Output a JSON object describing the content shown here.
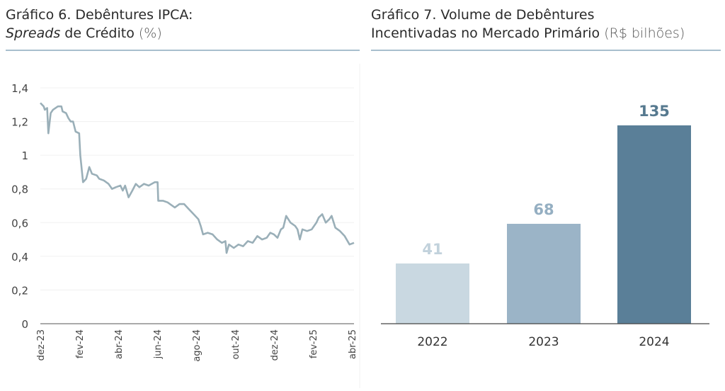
{
  "chart_data": [
    {
      "type": "line",
      "title_line1": "Gráfico 6. Debêntures IPCA:",
      "title_em": "Spreads",
      "title_rest": " de Crédito ",
      "title_unit": "(%)",
      "ylim": [
        0,
        1.4
      ],
      "yticks": [
        "0",
        "0,2",
        "0,4",
        "0,6",
        "0,8",
        "1",
        "1,2",
        "1,4"
      ],
      "ytick_values": [
        0,
        0.2,
        0.4,
        0.6,
        0.8,
        1.0,
        1.2,
        1.4
      ],
      "xlabels": [
        "dez-23",
        "fev-24",
        "abr-24",
        "jun-24",
        "ago-24",
        "out-24",
        "dez-24",
        "fev-25",
        "abr-25"
      ],
      "xlim_months": [
        0,
        16.1
      ],
      "color": "#9aafb8",
      "series": [
        {
          "name": "Spread",
          "x": [
            0,
            0.17,
            0.23,
            0.35,
            0.41,
            0.53,
            0.65,
            0.9,
            1.08,
            1.14,
            1.32,
            1.44,
            1.56,
            1.68,
            1.81,
            1.99,
            2.05,
            2.19,
            2.35,
            2.51,
            2.65,
            2.9,
            3.02,
            3.26,
            3.5,
            3.68,
            3.87,
            4.11,
            4.23,
            4.35,
            4.53,
            4.72,
            4.9,
            5.08,
            5.32,
            5.56,
            5.87,
            6.02,
            6.05,
            6.29,
            6.53,
            6.9,
            7.14,
            7.38,
            7.62,
            7.87,
            8.11,
            8.23,
            8.35,
            8.59,
            8.84,
            9.08,
            9.32,
            9.5,
            9.56,
            9.68,
            9.93,
            10.17,
            10.41,
            10.65,
            10.9,
            11.14,
            11.38,
            11.62,
            11.8,
            11.99,
            12.17,
            12.35,
            12.47,
            12.62,
            12.84,
            13.08,
            13.2,
            13.32,
            13.45,
            13.69,
            13.93,
            14.17,
            14.29,
            14.47,
            14.65,
            14.83,
            14.95,
            15.14,
            15.38,
            15.62,
            15.87,
            16.1
          ],
          "y": [
            1.31,
            1.29,
            1.27,
            1.28,
            1.13,
            1.25,
            1.27,
            1.29,
            1.29,
            1.26,
            1.25,
            1.22,
            1.2,
            1.2,
            1.14,
            1.13,
            1.0,
            0.84,
            0.86,
            0.93,
            0.89,
            0.88,
            0.86,
            0.85,
            0.83,
            0.8,
            0.81,
            0.82,
            0.79,
            0.82,
            0.75,
            0.79,
            0.83,
            0.81,
            0.83,
            0.82,
            0.84,
            0.84,
            0.73,
            0.73,
            0.72,
            0.69,
            0.71,
            0.71,
            0.68,
            0.65,
            0.62,
            0.58,
            0.53,
            0.54,
            0.53,
            0.5,
            0.48,
            0.49,
            0.42,
            0.47,
            0.45,
            0.47,
            0.46,
            0.49,
            0.48,
            0.52,
            0.5,
            0.51,
            0.54,
            0.53,
            0.51,
            0.56,
            0.57,
            0.64,
            0.6,
            0.58,
            0.56,
            0.5,
            0.56,
            0.55,
            0.56,
            0.6,
            0.63,
            0.65,
            0.6,
            0.62,
            0.64,
            0.57,
            0.55,
            0.52,
            0.47,
            0.48
          ]
        }
      ]
    },
    {
      "type": "bar",
      "title_line1": "Gráfico 7. Volume de Debêntures",
      "title_line2": "Incentivadas no Mercado Primário ",
      "title_unit": "(R$ bilhões)",
      "categories": [
        "2022",
        "2023",
        "2024"
      ],
      "values": [
        41,
        68,
        135
      ],
      "value_labels": [
        "41",
        "68",
        "135"
      ],
      "ylim": [
        0,
        135
      ],
      "colors": [
        "#c9d8e1",
        "#9bb4c7",
        "#5a7f98"
      ],
      "label_colors": [
        "#c2d2dc",
        "#95afc2",
        "#56798f"
      ]
    }
  ]
}
